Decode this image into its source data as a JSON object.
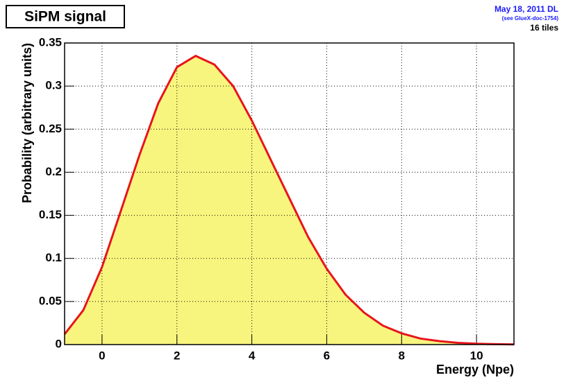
{
  "chart_data": {
    "type": "area",
    "title": "SiPM signal",
    "annotations": [
      "May 18, 2011 DL",
      "(see GlueX-doc-1754)",
      "16 tiles"
    ],
    "x_label": "Energy (Npe)",
    "y_label": "Probability (arbitrary units)",
    "x": [
      -1,
      -0.5,
      0,
      0.5,
      1,
      1.5,
      2,
      2.5,
      3,
      3.5,
      4,
      4.5,
      5,
      5.5,
      6,
      6.5,
      7,
      7.5,
      8,
      8.5,
      9,
      9.5,
      10,
      10.5,
      11
    ],
    "values": [
      0.012,
      0.04,
      0.09,
      0.155,
      0.22,
      0.28,
      0.322,
      0.335,
      0.325,
      0.3,
      0.26,
      0.215,
      0.17,
      0.125,
      0.088,
      0.058,
      0.037,
      0.022,
      0.013,
      0.007,
      0.004,
      0.002,
      0.001,
      0.0005,
      0.0002
    ],
    "color": "#e8141b",
    "fill_color": "#f8f57e",
    "xlim": [
      -1,
      11
    ],
    "xticks": [
      0,
      2,
      4,
      6,
      8,
      10
    ],
    "ylim": [
      0,
      0.35
    ],
    "yticks": [
      0,
      0.05,
      0.1,
      0.15,
      0.2,
      0.25,
      0.3,
      0.35
    ],
    "grid": true
  }
}
